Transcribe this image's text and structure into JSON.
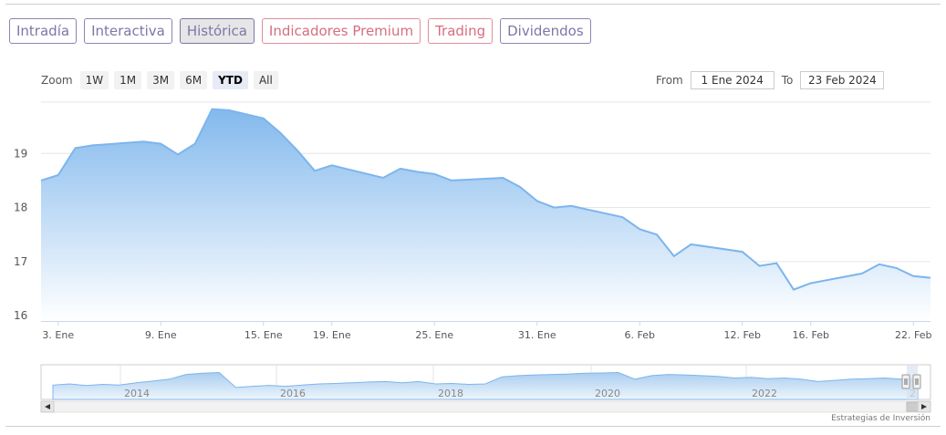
{
  "tabs": [
    {
      "label": "Intradía",
      "variant": "normal"
    },
    {
      "label": "Interactiva",
      "variant": "normal"
    },
    {
      "label": "Histórica",
      "variant": "active"
    },
    {
      "label": "Indicadores Premium",
      "variant": "premium"
    },
    {
      "label": "Trading",
      "variant": "premium"
    },
    {
      "label": "Dividendos",
      "variant": "normal"
    }
  ],
  "zoom": {
    "label": "Zoom",
    "buttons": [
      "1W",
      "1M",
      "3M",
      "6M",
      "YTD",
      "All"
    ],
    "selected": "YTD"
  },
  "range": {
    "from_label": "From",
    "from_value": "1 Ene 2024",
    "to_label": "To",
    "to_value": "23 Feb 2024"
  },
  "chart_data": {
    "type": "area",
    "title": "",
    "xlabel": "",
    "ylabel": "",
    "ylim": [
      15.9,
      19.95
    ],
    "yticks": [
      16,
      17,
      18,
      19
    ],
    "x_range": [
      "2024-01-02",
      "2024-02-23"
    ],
    "xticks": [
      {
        "date": "2024-01-03",
        "label": "3. Ene"
      },
      {
        "date": "2024-01-09",
        "label": "9. Ene"
      },
      {
        "date": "2024-01-15",
        "label": "15. Ene"
      },
      {
        "date": "2024-01-19",
        "label": "19. Ene"
      },
      {
        "date": "2024-01-25",
        "label": "25. Ene"
      },
      {
        "date": "2024-01-31",
        "label": "31. Ene"
      },
      {
        "date": "2024-02-06",
        "label": "6. Feb"
      },
      {
        "date": "2024-02-12",
        "label": "12. Feb"
      },
      {
        "date": "2024-02-16",
        "label": "16. Feb"
      },
      {
        "date": "2024-02-22",
        "label": "22. Feb"
      }
    ],
    "grid": true,
    "legend": "none",
    "colors": {
      "line": "#7cb5ec",
      "fill_top": "#7cb5ec",
      "fill_bottom": "#ffffff"
    },
    "series": [
      {
        "x": [
          "2024-01-02",
          "2024-01-03",
          "2024-01-04",
          "2024-01-05",
          "2024-01-08",
          "2024-01-09",
          "2024-01-10",
          "2024-01-11",
          "2024-01-12",
          "2024-01-13",
          "2024-01-15",
          "2024-01-16",
          "2024-01-17",
          "2024-01-18",
          "2024-01-19",
          "2024-01-22",
          "2024-01-23",
          "2024-01-24",
          "2024-01-25",
          "2024-01-26",
          "2024-01-29",
          "2024-01-30",
          "2024-01-31",
          "2024-02-01",
          "2024-02-02",
          "2024-02-05",
          "2024-02-06",
          "2024-02-07",
          "2024-02-08",
          "2024-02-09",
          "2024-02-12",
          "2024-02-13",
          "2024-02-14",
          "2024-02-15",
          "2024-02-16",
          "2024-02-19",
          "2024-02-20",
          "2024-02-21",
          "2024-02-22",
          "2024-02-23"
        ],
        "values": [
          18.5,
          18.6,
          19.1,
          19.15,
          19.22,
          19.18,
          18.98,
          19.18,
          19.82,
          19.8,
          19.65,
          19.38,
          19.05,
          18.68,
          18.78,
          18.55,
          18.72,
          18.66,
          18.62,
          18.5,
          18.55,
          18.38,
          18.12,
          18.0,
          18.03,
          17.82,
          17.6,
          17.5,
          17.1,
          17.32,
          17.18,
          16.92,
          16.97,
          16.48,
          16.6,
          16.78,
          16.95,
          16.88,
          16.73,
          16.7
        ]
      }
    ]
  },
  "navigator": {
    "year_labels": [
      "2014",
      "2016",
      "2018",
      "2020",
      "2022",
      "2"
    ],
    "line": [
      0.55,
      0.5,
      0.57,
      0.52,
      0.55,
      0.45,
      0.38,
      0.3,
      0.1,
      0.05,
      0.02,
      0.65,
      0.6,
      0.56,
      0.6,
      0.55,
      0.5,
      0.48,
      0.45,
      0.42,
      0.4,
      0.45,
      0.4,
      0.5,
      0.48,
      0.52,
      0.5,
      0.2,
      0.15,
      0.12,
      0.1,
      0.08,
      0.05,
      0.04,
      0.02,
      0.3,
      0.15,
      0.1,
      0.12,
      0.15,
      0.18,
      0.25,
      0.22,
      0.28,
      0.25,
      0.3,
      0.4,
      0.35,
      0.3,
      0.28,
      0.25,
      0.3,
      0.3
    ]
  },
  "credit": "Estrategias de Inversión"
}
